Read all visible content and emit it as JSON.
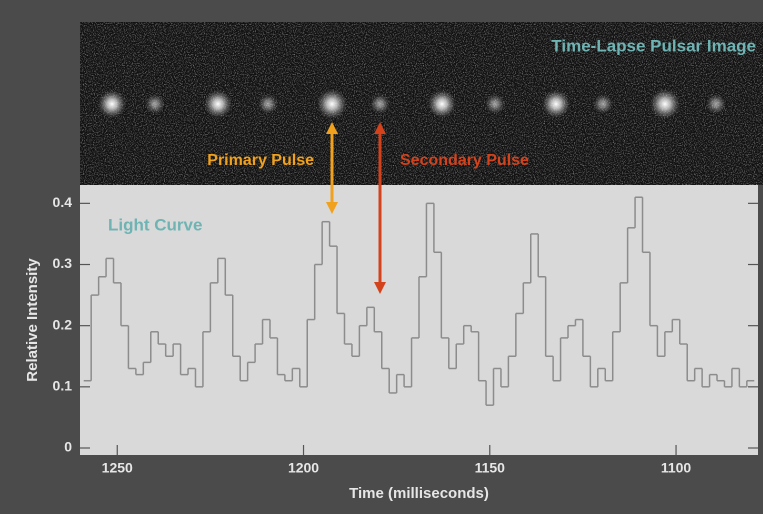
{
  "chart_data": {
    "type": "step",
    "title": "Time-Lapse Pulsar Image",
    "subtitle": "Light Curve",
    "x_label": "Time (milliseconds)",
    "y_label": "Relative Intensity",
    "annotations": [
      "Primary Pulse",
      "Secondary Pulse"
    ],
    "x": [
      1258,
      1256,
      1254,
      1252,
      1250,
      1248,
      1246,
      1244,
      1242,
      1240,
      1238,
      1236,
      1234,
      1232,
      1230,
      1228,
      1226,
      1224,
      1222,
      1220,
      1218,
      1216,
      1214,
      1212,
      1210,
      1208,
      1206,
      1204,
      1202,
      1200,
      1198,
      1196,
      1194,
      1192,
      1190,
      1188,
      1186,
      1184,
      1182,
      1180,
      1178,
      1176,
      1174,
      1172,
      1170,
      1168,
      1166,
      1164,
      1162,
      1160,
      1158,
      1156,
      1154,
      1152,
      1150,
      1148,
      1146,
      1144,
      1142,
      1140,
      1138,
      1136,
      1134,
      1132,
      1130,
      1128,
      1126,
      1124,
      1122,
      1120,
      1118,
      1116,
      1114,
      1112,
      1110,
      1108,
      1106,
      1104,
      1102,
      1100,
      1098,
      1096,
      1094,
      1092,
      1090,
      1088,
      1086,
      1084,
      1082,
      1080
    ],
    "values": [
      0.11,
      0.25,
      0.28,
      0.31,
      0.27,
      0.2,
      0.13,
      0.12,
      0.14,
      0.19,
      0.17,
      0.15,
      0.17,
      0.12,
      0.13,
      0.1,
      0.19,
      0.27,
      0.31,
      0.25,
      0.15,
      0.11,
      0.14,
      0.17,
      0.21,
      0.18,
      0.12,
      0.11,
      0.13,
      0.1,
      0.21,
      0.3,
      0.37,
      0.33,
      0.22,
      0.17,
      0.15,
      0.2,
      0.23,
      0.19,
      0.13,
      0.09,
      0.12,
      0.1,
      0.18,
      0.28,
      0.4,
      0.32,
      0.18,
      0.13,
      0.17,
      0.2,
      0.19,
      0.11,
      0.07,
      0.13,
      0.1,
      0.15,
      0.22,
      0.27,
      0.35,
      0.28,
      0.15,
      0.11,
      0.18,
      0.2,
      0.21,
      0.15,
      0.1,
      0.13,
      0.11,
      0.19,
      0.27,
      0.36,
      0.41,
      0.32,
      0.2,
      0.15,
      0.19,
      0.21,
      0.17,
      0.11,
      0.13,
      0.1,
      0.12,
      0.11,
      0.1,
      0.13,
      0.1,
      0.11
    ],
    "color": "#8c8c8c",
    "xlim": [
      1260,
      1078
    ],
    "ylim": [
      0,
      0.43
    ],
    "xticks": [
      1250,
      1200,
      1150,
      1100
    ],
    "yticks": [
      0,
      0.1,
      0.2,
      0.3,
      0.4
    ]
  }
}
